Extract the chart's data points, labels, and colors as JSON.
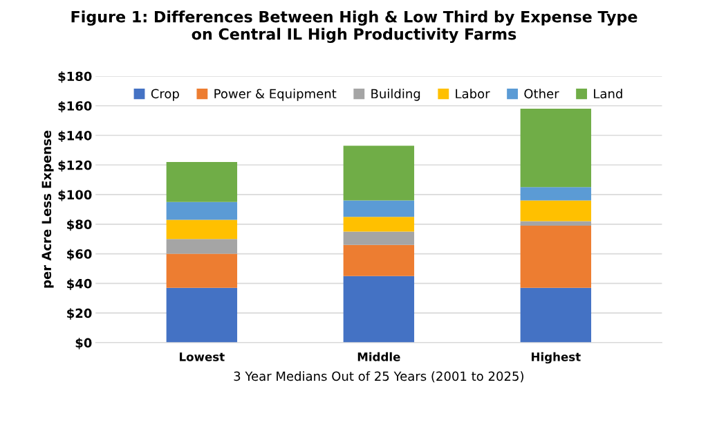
{
  "chart_data": {
    "type": "bar",
    "title": "Figure 1: Differences Between High & Low Third by Expense Type\non Central IL High Productivity Farms",
    "xlabel": "3 Year Medians Out of 25 Years (2001 to 2025)",
    "ylabel": "per Acre Less Expense",
    "categories": [
      "Lowest",
      "Middle",
      "Highest"
    ],
    "stacked": true,
    "series": [
      {
        "name": "Crop",
        "color": "#4472c4",
        "values": [
          37,
          45,
          37
        ]
      },
      {
        "name": "Power & Equipment",
        "color": "#ed7d31",
        "values": [
          23,
          21,
          42
        ]
      },
      {
        "name": "Building",
        "color": "#a5a5a5",
        "values": [
          10,
          9,
          3
        ]
      },
      {
        "name": "Labor",
        "color": "#ffc000",
        "values": [
          13,
          10,
          14
        ]
      },
      {
        "name": "Other",
        "color": "#5b9bd5",
        "values": [
          12,
          11,
          9
        ]
      },
      {
        "name": "Land",
        "color": "#70ad47",
        "values": [
          27,
          37,
          53
        ]
      }
    ],
    "ylim": [
      0,
      180
    ],
    "yticks": [
      {
        "value": 0,
        "label": "$0"
      },
      {
        "value": 20,
        "label": "$20"
      },
      {
        "value": 40,
        "label": "$40"
      },
      {
        "value": 60,
        "label": "$60"
      },
      {
        "value": 80,
        "label": "$80"
      },
      {
        "value": 100,
        "label": "$100"
      },
      {
        "value": 120,
        "label": "$120"
      },
      {
        "value": 140,
        "label": "$140"
      },
      {
        "value": 160,
        "label": "$160"
      },
      {
        "value": 180,
        "label": "$180"
      }
    ],
    "grid": "y",
    "legend": "top"
  }
}
